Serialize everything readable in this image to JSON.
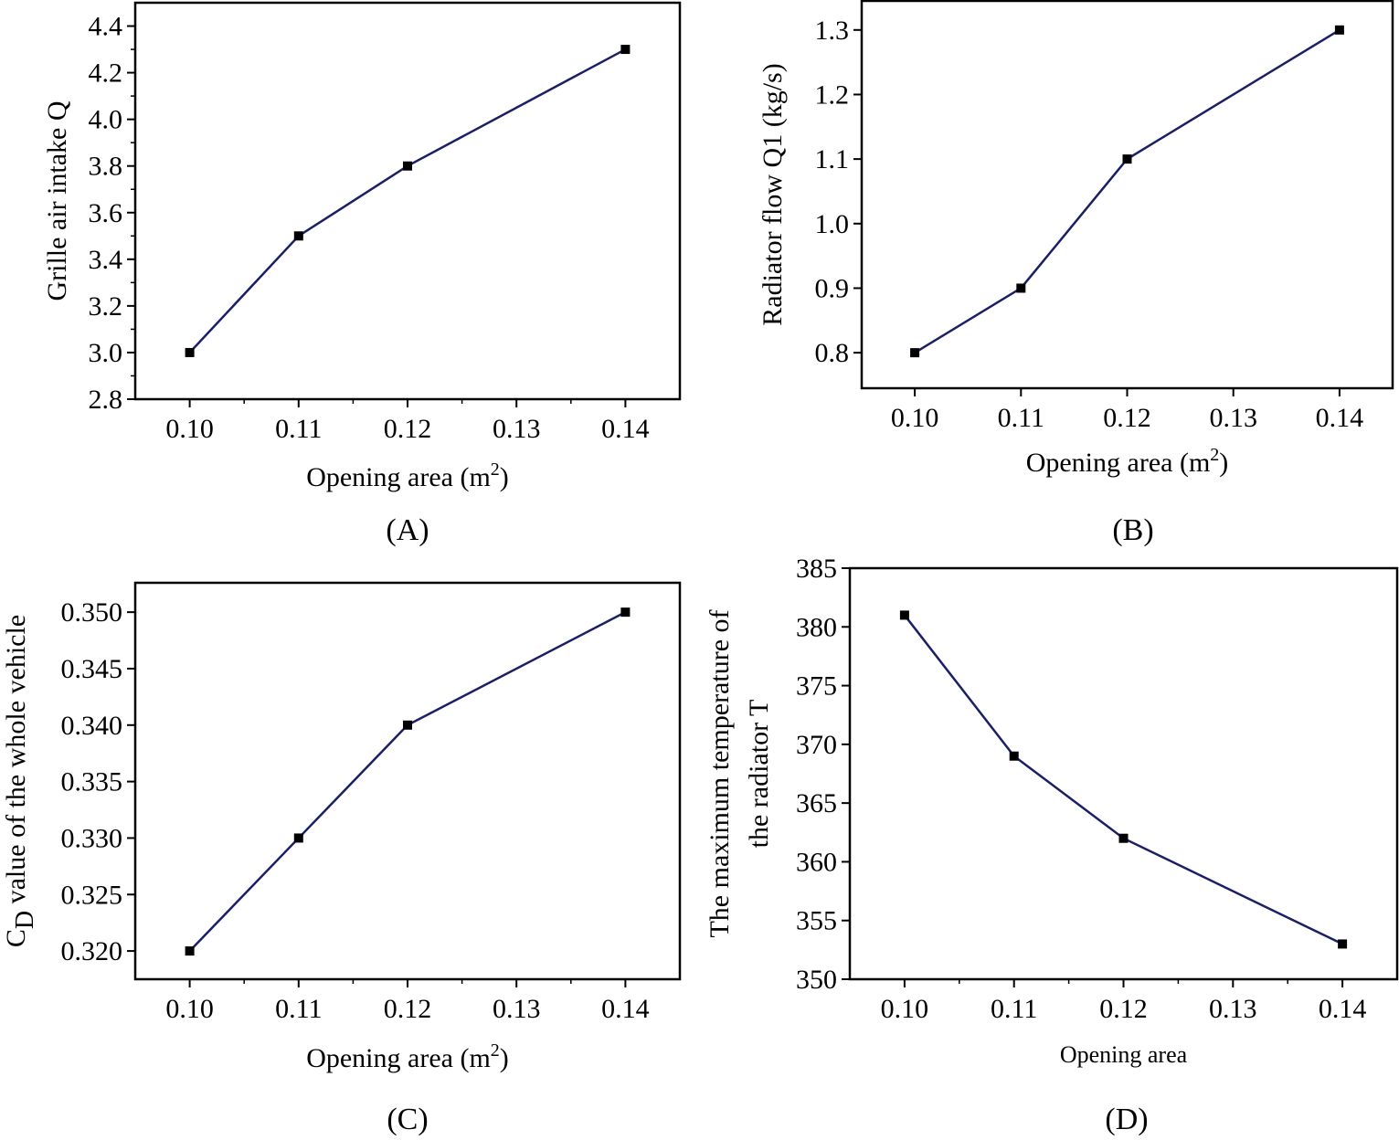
{
  "chart_data": [
    {
      "panel": "A",
      "type": "line",
      "x": [
        0.1,
        0.11,
        0.12,
        0.14
      ],
      "y": [
        3.0,
        3.5,
        3.8,
        4.3
      ],
      "x_ticks": [
        "0.10",
        "0.11",
        "0.12",
        "0.13",
        "0.14"
      ],
      "y_ticks": [
        "2.8",
        "3.0",
        "3.2",
        "3.4",
        "3.6",
        "3.8",
        "4.0",
        "4.2",
        "4.4"
      ],
      "xlim": [
        0.095,
        0.145
      ],
      "ylim": [
        2.8,
        4.5
      ],
      "xlabel": "Opening area (m",
      "xlabel_sup": "2",
      "xlabel_end": ")",
      "ylabel": "Grille air intake Q",
      "ylabel_sub": "",
      "ylabel_rest": "",
      "ylabel_line2": "",
      "caption": "(A)",
      "line_color": "#1a1f66"
    },
    {
      "panel": "B",
      "type": "line",
      "x": [
        0.1,
        0.11,
        0.12,
        0.14
      ],
      "y": [
        0.8,
        0.9,
        1.1,
        1.3
      ],
      "x_ticks": [
        "0.10",
        "0.11",
        "0.12",
        "0.13",
        "0.14"
      ],
      "y_ticks": [
        "0.8",
        "0.9",
        "1.0",
        "1.1",
        "1.2",
        "1.3"
      ],
      "xlim": [
        0.095,
        0.145
      ],
      "ylim": [
        0.745,
        1.345
      ],
      "xlabel": "Opening area (m",
      "xlabel_sup": "2",
      "xlabel_end": ")",
      "ylabel": "Radiator flow Q1 (kg/s)",
      "ylabel_sub": "",
      "ylabel_rest": "",
      "ylabel_line2": "",
      "caption": "(B)",
      "line_color": "#1a1f66"
    },
    {
      "panel": "C",
      "type": "line",
      "x": [
        0.1,
        0.11,
        0.12,
        0.14
      ],
      "y": [
        0.32,
        0.33,
        0.34,
        0.35
      ],
      "x_ticks": [
        "0.10",
        "0.11",
        "0.12",
        "0.13",
        "0.14"
      ],
      "y_ticks": [
        "0.320",
        "0.325",
        "0.330",
        "0.335",
        "0.340",
        "0.345",
        "0.350"
      ],
      "xlim": [
        0.095,
        0.145
      ],
      "ylim": [
        0.3175,
        0.3526
      ],
      "xlabel": "Opening area (m",
      "xlabel_sup": "2",
      "xlabel_end": ")",
      "ylabel": "C",
      "ylabel_sub": "D",
      "ylabel_rest": " value of the whole vehicle",
      "ylabel_line2": "",
      "caption": "(C)",
      "line_color": "#1a1f66"
    },
    {
      "panel": "D",
      "type": "line",
      "x": [
        0.1,
        0.11,
        0.12,
        0.14
      ],
      "y": [
        381,
        369,
        362,
        353
      ],
      "x_ticks": [
        "0.10",
        "0.11",
        "0.12",
        "0.13",
        "0.14"
      ],
      "y_ticks": [
        "350",
        "355",
        "360",
        "365",
        "370",
        "375",
        "380",
        "385"
      ],
      "xlim": [
        0.095,
        0.145
      ],
      "ylim": [
        350,
        385
      ],
      "xlabel": "Opening area",
      "xlabel_sup": "",
      "xlabel_end": "",
      "ylabel": "The maximum temperature of",
      "ylabel_sub": "",
      "ylabel_rest": "",
      "ylabel_line2": "the radiator T",
      "caption": "(D)",
      "line_color": "#1a1f66"
    }
  ]
}
